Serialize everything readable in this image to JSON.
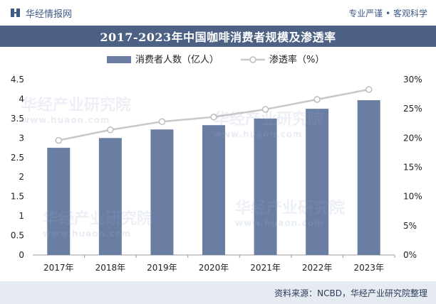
{
  "header": {
    "brand": "华经情报网",
    "slogan": "专业严谨 • 客观科学"
  },
  "title": "2017-2023年中国咖啡消费者规模及渗透率",
  "source": "资料来源：NCBD，华经产业研究院整理",
  "watermark": {
    "text": "华经产业研究院",
    "url": "www.huaon.com"
  },
  "colors": {
    "bar": "#6a7da3",
    "line": "#c8c8c8",
    "marker_fill": "#ffffff",
    "marker_stroke": "#bdbdbd",
    "title_bg": "#4c6184",
    "axis_text": "#222222"
  },
  "chart_data": {
    "type": "bar+line",
    "title": "2017-2023年中国咖啡消费者规模及渗透率",
    "categories": [
      "2017年",
      "2018年",
      "2019年",
      "2020年",
      "2021年",
      "2022年",
      "2023年"
    ],
    "series": [
      {
        "name": "消费者人数（亿人）",
        "type": "bar",
        "axis": "left",
        "values": [
          2.75,
          3.0,
          3.22,
          3.33,
          3.5,
          3.75,
          3.97
        ]
      },
      {
        "name": "渗透率（%）",
        "type": "line",
        "axis": "right",
        "values": [
          19.6,
          21.4,
          22.8,
          23.6,
          24.9,
          26.6,
          28.3
        ]
      }
    ],
    "y_left": {
      "min": 0,
      "max": 4.5,
      "ticks": [
        "0",
        "0.5",
        "1",
        "1.5",
        "2",
        "2.5",
        "3",
        "3.5",
        "4",
        "4.5"
      ]
    },
    "y_right": {
      "min": 0,
      "max": 30,
      "ticks": [
        "0%",
        "5%",
        "10%",
        "15%",
        "20%",
        "25%",
        "30%"
      ]
    },
    "legend_position": "top-center",
    "grid": false
  }
}
